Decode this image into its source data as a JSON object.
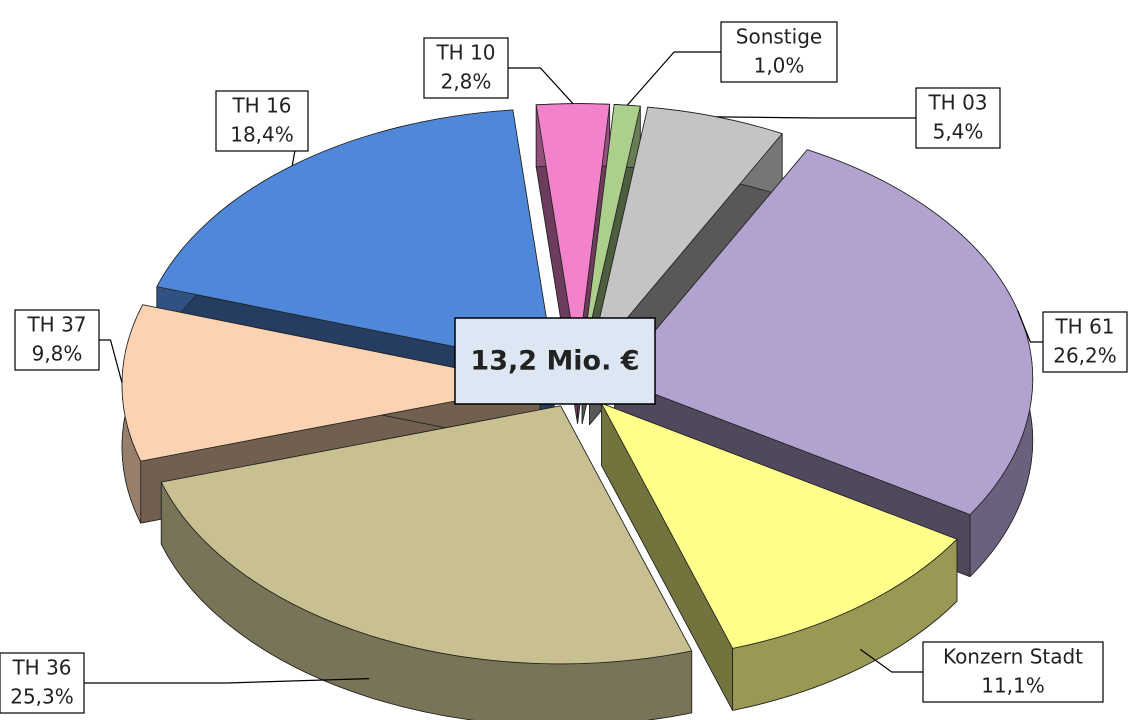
{
  "chart_data": {
    "type": "pie",
    "center_label": "13,2 Mio. €",
    "categories": [
      "TH 03",
      "TH 61",
      "Konzern Stadt",
      "TH 36",
      "TH 37",
      "TH 16",
      "TH 10",
      "Sonstige"
    ],
    "values": [
      5.4,
      26.2,
      11.1,
      25.3,
      9.8,
      18.4,
      2.8,
      1.0
    ],
    "value_labels": [
      "5,4%",
      "26,2%",
      "11,1%",
      "25,3%",
      "9,8%",
      "18,4%",
      "2,8%",
      "1,0%"
    ],
    "colors": [
      "#c4c4c4",
      "#b1a2cf",
      "#ffff8a",
      "#c9c092",
      "#fcd3b2",
      "#4f88d8",
      "#f283cb",
      "#acd08c"
    ]
  }
}
